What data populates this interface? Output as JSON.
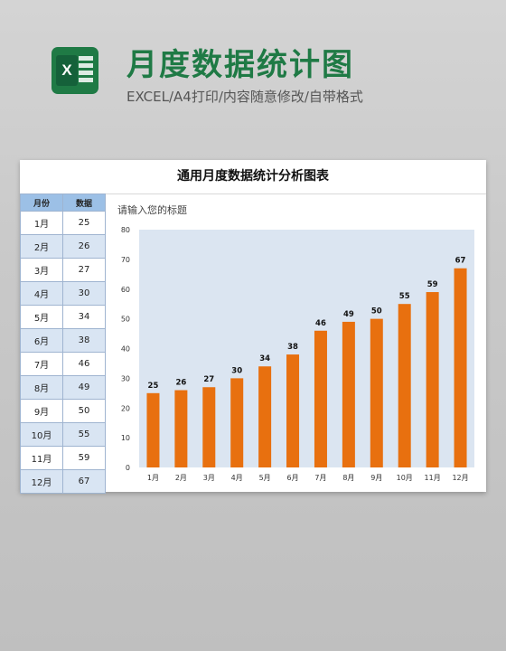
{
  "header": {
    "logo_letter": "X",
    "title": "月度数据统计图",
    "subtitle": "EXCEL/A4打印/内容随意修改/自带格式"
  },
  "sheet": {
    "title": "通用月度数据统计分析图表",
    "table": {
      "headers": [
        "月份",
        "数据"
      ],
      "rows": [
        [
          "1月",
          "25"
        ],
        [
          "2月",
          "26"
        ],
        [
          "3月",
          "27"
        ],
        [
          "4月",
          "30"
        ],
        [
          "5月",
          "34"
        ],
        [
          "6月",
          "38"
        ],
        [
          "7月",
          "46"
        ],
        [
          "8月",
          "49"
        ],
        [
          "9月",
          "50"
        ],
        [
          "10月",
          "55"
        ],
        [
          "11月",
          "59"
        ],
        [
          "12月",
          "67"
        ]
      ]
    },
    "chart_caption": "请输入您的标题"
  },
  "colors": {
    "bar": "#e8700f",
    "plot_bg": "#dbe5f1",
    "brand_green": "#1f7a45"
  },
  "chart_data": {
    "type": "bar",
    "title": "请输入您的标题",
    "categories": [
      "1月",
      "2月",
      "3月",
      "4月",
      "5月",
      "6月",
      "7月",
      "8月",
      "9月",
      "10月",
      "11月",
      "12月"
    ],
    "values": [
      25,
      26,
      27,
      30,
      34,
      38,
      46,
      49,
      50,
      55,
      59,
      67
    ],
    "ylim": [
      0,
      80
    ],
    "yticks": [
      0,
      10,
      20,
      30,
      40,
      50,
      60,
      70,
      80
    ],
    "grid": false,
    "data_labels": true,
    "legend": "none",
    "xlabel": "",
    "ylabel": ""
  }
}
